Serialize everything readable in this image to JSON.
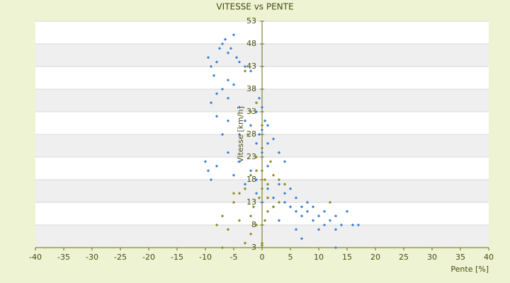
{
  "chart_data": {
    "type": "scatter",
    "title": "VITESSE vs PENTE",
    "x_label": "Pente [%]",
    "y_label": "Vitesse [km/h]",
    "xlim": [
      -40,
      40
    ],
    "xticks": [
      -40,
      -35,
      -30,
      -25,
      -20,
      -15,
      -10,
      -5,
      0,
      5,
      10,
      15,
      20,
      25,
      30,
      35,
      40
    ],
    "ylim": [
      3,
      53
    ],
    "yticks": [
      3,
      8,
      13,
      18,
      23,
      28,
      33,
      38,
      43,
      48,
      53
    ],
    "grid": true,
    "series": [
      {
        "color": "#3a7fd5",
        "x": [
          -9.5,
          -9,
          -8.5,
          -8,
          -7.5,
          -7,
          -6.5,
          -6,
          -5.5,
          -5,
          -4.5,
          -4,
          -3,
          -2,
          -9,
          -8,
          -7,
          -6,
          -5,
          -4,
          -3,
          -2,
          -8,
          -6,
          -1,
          0,
          0.5,
          1,
          -0.5,
          1,
          2,
          3,
          -1,
          0,
          -10,
          -9.5,
          -9,
          -8,
          -6,
          -5,
          -4,
          -3,
          -2,
          -1,
          1,
          2,
          3,
          4,
          5,
          4,
          5,
          6,
          6,
          7,
          7,
          8,
          8,
          9,
          9,
          10,
          11,
          11,
          12,
          13,
          13,
          14,
          15,
          16,
          17,
          13,
          10,
          6,
          7,
          3,
          2,
          0,
          -1,
          1,
          0,
          -0.5,
          4,
          -7,
          -6,
          -4
        ],
        "values": [
          45,
          43,
          41,
          44,
          47,
          48,
          49,
          46,
          47,
          50,
          45,
          44,
          43,
          42,
          35,
          37,
          38,
          36,
          39,
          34,
          31,
          30,
          32,
          40,
          33,
          34,
          31,
          30,
          28,
          26,
          27,
          24,
          26,
          24,
          22,
          20,
          18,
          21,
          24,
          19,
          22,
          17,
          20,
          18,
          16,
          14,
          17,
          15,
          16,
          13,
          12,
          14,
          11,
          12,
          10,
          13,
          11,
          9,
          12,
          10,
          8,
          11,
          9,
          7,
          10,
          8,
          11,
          8,
          8,
          3,
          7,
          7,
          5,
          9,
          12,
          13,
          15,
          21,
          29,
          36,
          22,
          28,
          31,
          28
        ]
      },
      {
        "color": "#8a8a1e",
        "x": [
          -8,
          -7,
          -6,
          -5,
          -4,
          -3,
          -2,
          -1,
          -1,
          0,
          0,
          0.5,
          1,
          2,
          1,
          2,
          3,
          -7,
          -3,
          -2,
          -1,
          0,
          0,
          0.5,
          1,
          -4,
          -1.5,
          -0.5,
          1.5,
          -1,
          -2,
          -2.5,
          0,
          12,
          3,
          4,
          -5,
          -2,
          0,
          -3
        ],
        "values": [
          8,
          10,
          7,
          13,
          15,
          16,
          19,
          20,
          23,
          25,
          20,
          18,
          17,
          19,
          14,
          12,
          13,
          3,
          4,
          6,
          8,
          4,
          3.5,
          9,
          11,
          9,
          12,
          14,
          22,
          35,
          33,
          28,
          30,
          13,
          18,
          17,
          15,
          10,
          16,
          42
        ]
      }
    ]
  }
}
